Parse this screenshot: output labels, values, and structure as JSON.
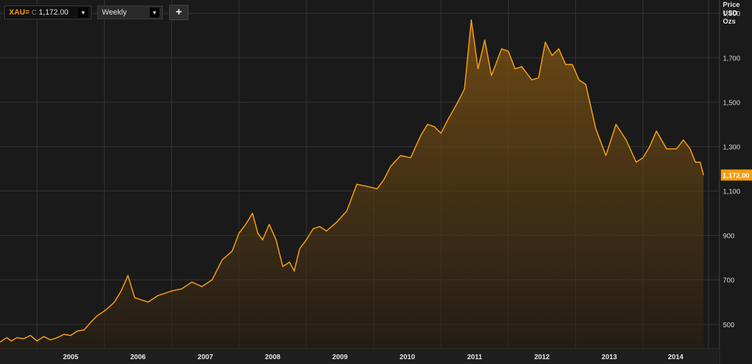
{
  "toolbar": {
    "symbol": "XAU=",
    "close_prefix": "C",
    "close_value": "1,172.00",
    "period": "Weekly",
    "add_label": "+",
    "dropdown_icon": "chevron-down-icon",
    "add_icon": "plus-icon"
  },
  "colors": {
    "background": "#1a1a1a",
    "grid": "#353535",
    "line": "#f39c12",
    "last_price_badge": "#f39c12"
  },
  "chart_data": {
    "type": "area",
    "ylabel_lines": [
      "Price",
      "USD",
      "Ozs"
    ],
    "ylim": [
      390,
      1960
    ],
    "y_ticks": [
      500,
      700,
      900,
      1100,
      1300,
      1500,
      1700,
      1900
    ],
    "y_tick_labels": [
      "500",
      "700",
      "900",
      "1,100",
      "1,300",
      "1,500",
      "1,700",
      "1,900"
    ],
    "x_tick_labels": [
      "2005",
      "2006",
      "2007",
      "2008",
      "2009",
      "2010",
      "2011",
      "2012",
      "2013",
      "2014"
    ],
    "x_years": [
      2005,
      2006,
      2007,
      2008,
      2009,
      2010,
      2011,
      2012,
      2013,
      2014
    ],
    "xlim": [
      2004.45,
      2014.93
    ],
    "grid": true,
    "last_value": 1172,
    "last_value_label": "1,172.00",
    "series": [
      {
        "x": [
          2004.45,
          2004.55,
          2004.62,
          2004.7,
          2004.8,
          2004.9,
          2005.0,
          2005.1,
          2005.2,
          2005.3,
          2005.4,
          2005.5,
          2005.6,
          2005.7,
          2005.8,
          2005.9,
          2006.0,
          2006.08,
          2006.15,
          2006.25,
          2006.35,
          2006.45,
          2006.55,
          2006.65,
          2006.8,
          2007.0,
          2007.15,
          2007.3,
          2007.45,
          2007.6,
          2007.75,
          2007.9,
          2008.0,
          2008.1,
          2008.2,
          2008.28,
          2008.35,
          2008.45,
          2008.55,
          2008.65,
          2008.75,
          2008.82,
          2008.9,
          2009.0,
          2009.1,
          2009.2,
          2009.3,
          2009.45,
          2009.6,
          2009.75,
          2009.92,
          2010.05,
          2010.15,
          2010.25,
          2010.4,
          2010.55,
          2010.7,
          2010.8,
          2010.9,
          2011.0,
          2011.1,
          2011.25,
          2011.35,
          2011.45,
          2011.55,
          2011.65,
          2011.75,
          2011.9,
          2012.0,
          2012.1,
          2012.2,
          2012.35,
          2012.45,
          2012.55,
          2012.65,
          2012.75,
          2012.85,
          2012.95,
          2013.05,
          2013.15,
          2013.3,
          2013.45,
          2013.6,
          2013.75,
          2013.9,
          2014.0,
          2014.1,
          2014.2,
          2014.35,
          2014.5,
          2014.6,
          2014.7,
          2014.78,
          2014.85,
          2014.9
        ],
        "values": [
          420,
          440,
          425,
          440,
          435,
          450,
          425,
          445,
          430,
          440,
          455,
          450,
          470,
          475,
          510,
          540,
          560,
          580,
          600,
          650,
          720,
          620,
          610,
          600,
          630,
          650,
          660,
          690,
          670,
          700,
          790,
          830,
          910,
          950,
          1000,
          910,
          880,
          950,
          880,
          760,
          780,
          740,
          840,
          880,
          930,
          940,
          920,
          960,
          1010,
          1130,
          1120,
          1110,
          1150,
          1210,
          1260,
          1250,
          1350,
          1400,
          1390,
          1360,
          1420,
          1500,
          1560,
          1870,
          1650,
          1780,
          1620,
          1740,
          1730,
          1650,
          1660,
          1600,
          1610,
          1770,
          1710,
          1740,
          1670,
          1670,
          1600,
          1580,
          1380,
          1260,
          1400,
          1330,
          1230,
          1250,
          1300,
          1370,
          1290,
          1290,
          1330,
          1290,
          1230,
          1230,
          1172
        ]
      }
    ]
  }
}
